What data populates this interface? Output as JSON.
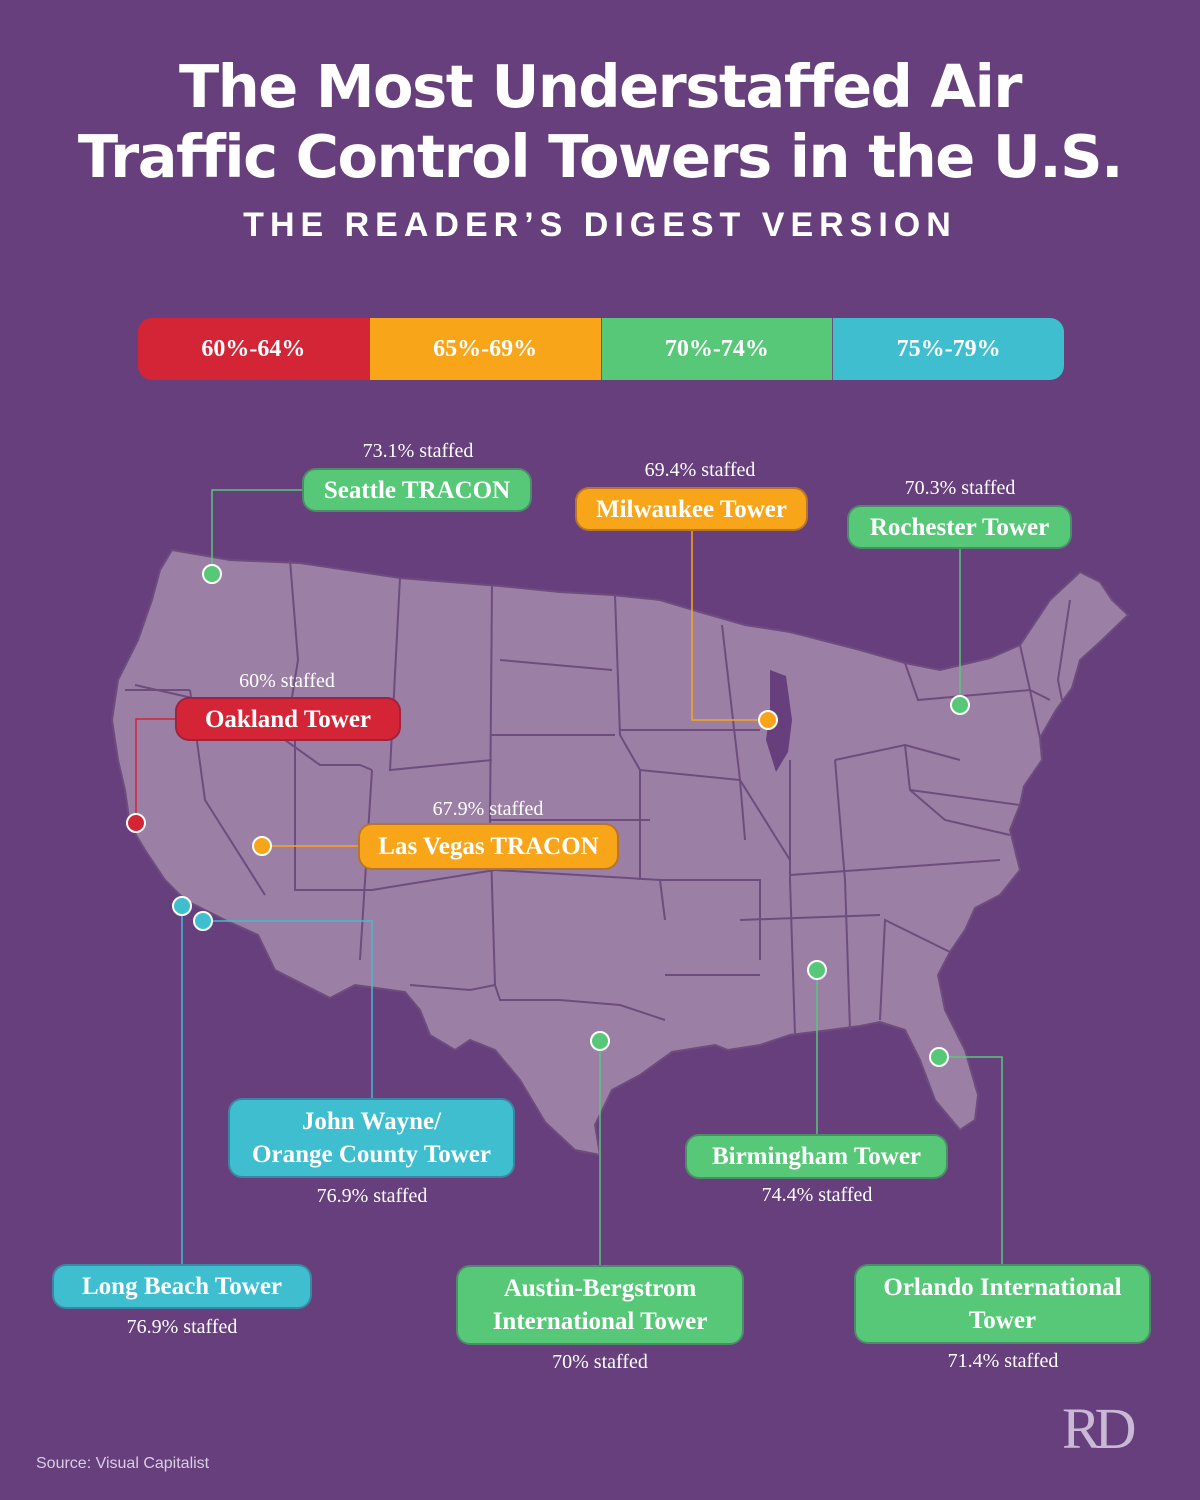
{
  "title_line1": "The Most Understaffed Air",
  "title_line2": "Traffic Control Towers in the U.S.",
  "subtitle": "THE READER’S DIGEST VERSION",
  "legend": [
    {
      "label": "60%-64%",
      "color": "#d42537"
    },
    {
      "label": "65%-69%",
      "color": "#f9a51a"
    },
    {
      "label": "70%-74%",
      "color": "#57c878"
    },
    {
      "label": "75%-79%",
      "color": "#3ebecf"
    }
  ],
  "towers": [
    {
      "name": "Seattle TRACON",
      "staffed_pct": 73.1,
      "staffed_text": "73.1% staffed",
      "color": "#57c878"
    },
    {
      "name": "Milwaukee Tower",
      "staffed_pct": 69.4,
      "staffed_text": "69.4% staffed",
      "color": "#f9a51a"
    },
    {
      "name": "Rochester Tower",
      "staffed_pct": 70.3,
      "staffed_text": "70.3% staffed",
      "color": "#57c878"
    },
    {
      "name": "Oakland Tower",
      "staffed_pct": 60,
      "staffed_text": "60% staffed",
      "color": "#d42537"
    },
    {
      "name": "Las Vegas TRACON",
      "staffed_pct": 67.9,
      "staffed_text": "67.9% staffed",
      "color": "#f9a51a"
    },
    {
      "name_line1": "John Wayne/",
      "name_line2": "Orange County Tower",
      "staffed_pct": 76.9,
      "staffed_text": "76.9% staffed",
      "color": "#3ebecf"
    },
    {
      "name": "Birmingham Tower",
      "staffed_pct": 74.4,
      "staffed_text": "74.4% staffed",
      "color": "#57c878"
    },
    {
      "name": "Long Beach Tower",
      "staffed_pct": 76.9,
      "staffed_text": "76.9% staffed",
      "color": "#3ebecf"
    },
    {
      "name_line1": "Austin-Bergstrom",
      "name_line2": "International Tower",
      "staffed_pct": 70,
      "staffed_text": "70% staffed",
      "color": "#57c878"
    },
    {
      "name_line1": "Orlando International",
      "name_line2": "Tower",
      "staffed_pct": 71.4,
      "staffed_text": "71.4% staffed",
      "color": "#57c878"
    }
  ],
  "source": "Source: Visual Capitalist",
  "logo_text": "RD",
  "map_fill": "#9c7fa4",
  "map_border": "#6e4d7e"
}
